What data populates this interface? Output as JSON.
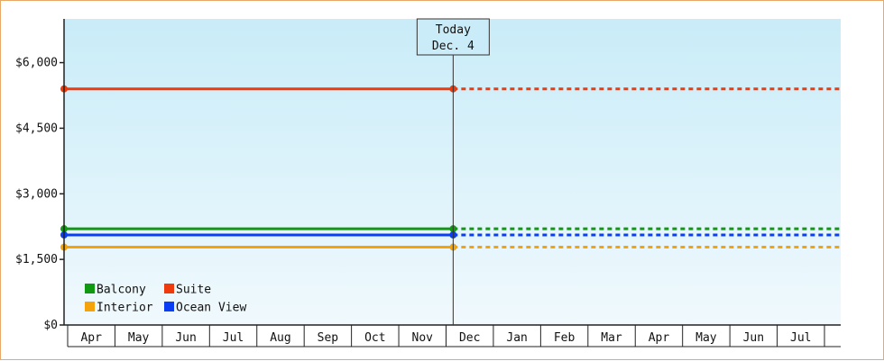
{
  "chart_data": {
    "type": "line",
    "today_marker": {
      "line1": "Today",
      "line2": "Dec. 4",
      "month_index": 8.15
    },
    "months": [
      "Apr",
      "May",
      "Jun",
      "Jul",
      "Aug",
      "Sep",
      "Oct",
      "Nov",
      "Dec",
      "Jan",
      "Feb",
      "Mar",
      "Apr",
      "May",
      "Jun",
      "Jul"
    ],
    "y_ticks": [
      {
        "value": 0,
        "label": "$0"
      },
      {
        "value": 1500,
        "label": "$1,500"
      },
      {
        "value": 3000,
        "label": "$3,000"
      },
      {
        "value": 4500,
        "label": "$4,500"
      },
      {
        "value": 6000,
        "label": "$6,000"
      }
    ],
    "ylim": [
      0,
      7000
    ],
    "legend_placement": "bottom-left",
    "grid": false,
    "series": [
      {
        "name": "Balcony",
        "color": "#119911",
        "value": 2200
      },
      {
        "name": "Suite",
        "color": "#ee3a0c",
        "value": 5400
      },
      {
        "name": "Interior",
        "color": "#f5a30a",
        "value": 1780
      },
      {
        "name": "Ocean View",
        "color": "#0a3ef5",
        "value": 2060
      }
    ]
  }
}
